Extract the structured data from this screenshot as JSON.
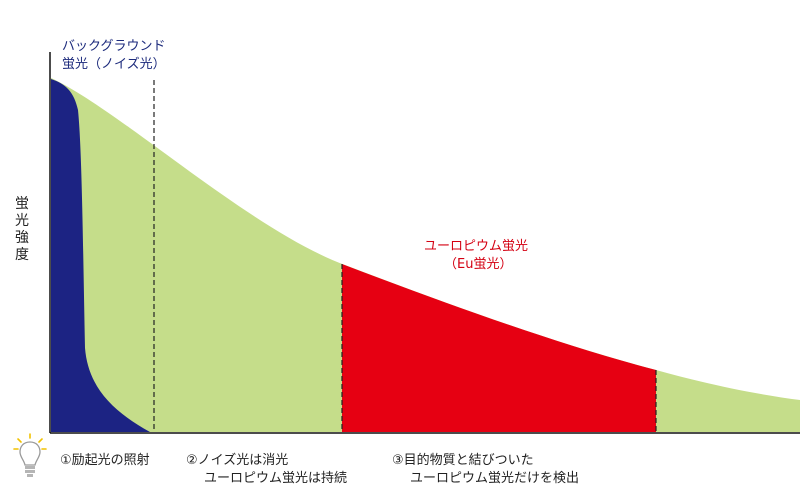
{
  "labels": {
    "background_line1": "バックグラウンド",
    "background_line2": "蛍光（ノイズ光）",
    "eu_line1": "ユーロピウム蛍光",
    "eu_line2": "（Eu蛍光）",
    "y_axis": "蛍光強度"
  },
  "steps": [
    {
      "line1": "①励起光の照射",
      "line2": ""
    },
    {
      "line1": "②ノイズ光は消光",
      "line2": "ユーロピウム蛍光は持続"
    },
    {
      "line1": "③目的物質と結びついた",
      "line2": "ユーロピウム蛍光だけを検出"
    }
  ],
  "colors": {
    "decay_fill": "#c5dd8a",
    "background_fill": "#1c2383",
    "eu_fill": "#e60012",
    "eu_text": "#d40012",
    "background_text": "#1c2a7c",
    "bulb_rays": "#f2c200"
  },
  "icons": {
    "light": "light-bulb-icon"
  }
}
